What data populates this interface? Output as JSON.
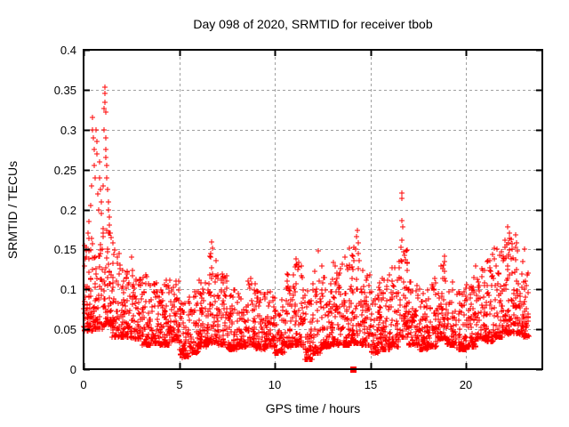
{
  "window": {
    "background": "#ffffff"
  },
  "chart_data": {
    "type": "scatter",
    "title": "Day 098 of 2020, SRMTID for receiver tbob",
    "xlabel": "GPS time / hours",
    "ylabel": "SRMTID / TECUs",
    "xlim": [
      0,
      24
    ],
    "ylim": [
      0,
      0.4
    ],
    "xticks": [
      0,
      5,
      10,
      15,
      20
    ],
    "xtick_labels": [
      "0",
      "5",
      "10",
      "15",
      "20"
    ],
    "yticks": [
      0,
      0.05,
      0.1,
      0.15,
      0.2,
      0.25,
      0.3,
      0.35,
      0.4
    ],
    "ytick_labels": [
      "0",
      "0.05",
      "0.1",
      "0.15",
      "0.2",
      "0.25",
      "0.3",
      "0.35",
      "0.4"
    ],
    "grid": true,
    "legend": false,
    "colors": {
      "marker": "#ff0000",
      "grid": "#a0a0a0",
      "frame": "#000000"
    },
    "series": [
      {
        "name": "SRMTID",
        "marker": "plus",
        "color": "#ff0000",
        "seed": 2020098,
        "band_bins": [
          [
            0.0,
            0.5,
            70,
            0.048,
            0.165
          ],
          [
            0.5,
            1.0,
            62,
            0.05,
            0.16
          ],
          [
            1.0,
            1.5,
            66,
            0.055,
            0.185
          ],
          [
            1.5,
            2.0,
            60,
            0.04,
            0.15
          ],
          [
            2.0,
            2.5,
            60,
            0.04,
            0.125
          ],
          [
            2.5,
            3.0,
            60,
            0.038,
            0.14
          ],
          [
            3.0,
            3.5,
            60,
            0.03,
            0.12
          ],
          [
            3.5,
            4.0,
            60,
            0.032,
            0.11
          ],
          [
            4.0,
            4.5,
            60,
            0.03,
            0.115
          ],
          [
            4.5,
            5.0,
            60,
            0.035,
            0.115
          ],
          [
            5.0,
            5.5,
            60,
            0.015,
            0.085
          ],
          [
            5.5,
            6.0,
            60,
            0.02,
            0.1
          ],
          [
            6.0,
            6.5,
            60,
            0.028,
            0.115
          ],
          [
            6.5,
            7.0,
            60,
            0.032,
            0.145
          ],
          [
            7.0,
            7.5,
            60,
            0.03,
            0.12
          ],
          [
            7.5,
            8.0,
            60,
            0.025,
            0.1
          ],
          [
            8.0,
            8.5,
            60,
            0.028,
            0.1
          ],
          [
            8.5,
            9.0,
            60,
            0.03,
            0.115
          ],
          [
            9.0,
            9.5,
            60,
            0.025,
            0.1
          ],
          [
            9.5,
            10.0,
            60,
            0.028,
            0.1
          ],
          [
            10.0,
            10.5,
            60,
            0.02,
            0.09
          ],
          [
            10.5,
            11.0,
            60,
            0.028,
            0.12
          ],
          [
            11.0,
            11.5,
            60,
            0.03,
            0.135
          ],
          [
            11.5,
            12.0,
            60,
            0.012,
            0.1
          ],
          [
            12.0,
            12.5,
            60,
            0.02,
            0.13
          ],
          [
            12.5,
            13.0,
            60,
            0.028,
            0.115
          ],
          [
            13.0,
            13.5,
            60,
            0.03,
            0.14
          ],
          [
            13.5,
            14.0,
            60,
            0.03,
            0.145
          ],
          [
            14.0,
            14.5,
            60,
            0.032,
            0.155
          ],
          [
            14.5,
            15.0,
            60,
            0.03,
            0.125
          ],
          [
            15.0,
            15.5,
            60,
            0.02,
            0.11
          ],
          [
            15.5,
            16.0,
            60,
            0.024,
            0.115
          ],
          [
            16.0,
            16.5,
            60,
            0.028,
            0.135
          ],
          [
            16.5,
            17.0,
            60,
            0.04,
            0.15
          ],
          [
            17.0,
            17.5,
            60,
            0.03,
            0.115
          ],
          [
            17.5,
            18.0,
            60,
            0.024,
            0.1
          ],
          [
            18.0,
            18.5,
            60,
            0.028,
            0.115
          ],
          [
            18.5,
            19.0,
            60,
            0.038,
            0.135
          ],
          [
            19.0,
            19.5,
            60,
            0.03,
            0.11
          ],
          [
            19.5,
            20.0,
            60,
            0.024,
            0.1
          ],
          [
            20.0,
            20.5,
            60,
            0.028,
            0.115
          ],
          [
            20.5,
            21.0,
            60,
            0.038,
            0.13
          ],
          [
            21.0,
            21.5,
            60,
            0.034,
            0.145
          ],
          [
            21.5,
            22.0,
            60,
            0.04,
            0.155
          ],
          [
            22.0,
            22.5,
            60,
            0.044,
            0.165
          ],
          [
            22.5,
            23.0,
            60,
            0.044,
            0.155
          ],
          [
            23.0,
            23.3,
            36,
            0.04,
            0.125
          ]
        ],
        "outlier_points": [
          [
            0.05,
            0.155
          ],
          [
            0.12,
            0.148
          ],
          [
            0.25,
            0.17
          ],
          [
            0.3,
            0.185
          ],
          [
            0.35,
            0.205
          ],
          [
            0.42,
            0.23
          ],
          [
            0.45,
            0.315
          ],
          [
            0.48,
            0.3
          ],
          [
            0.52,
            0.29
          ],
          [
            0.55,
            0.275
          ],
          [
            0.58,
            0.255
          ],
          [
            0.62,
            0.24
          ],
          [
            0.65,
            0.3
          ],
          [
            0.68,
            0.285
          ],
          [
            0.72,
            0.27
          ],
          [
            0.75,
            0.22
          ],
          [
            0.78,
            0.2
          ],
          [
            0.82,
            0.26
          ],
          [
            0.85,
            0.24
          ],
          [
            0.88,
            0.225
          ],
          [
            0.92,
            0.21
          ],
          [
            0.95,
            0.195
          ],
          [
            1.0,
            0.23
          ],
          [
            1.05,
            0.3
          ],
          [
            1.08,
            0.327
          ],
          [
            1.1,
            0.353
          ],
          [
            1.11,
            0.345
          ],
          [
            1.12,
            0.334
          ],
          [
            1.14,
            0.322
          ],
          [
            1.15,
            0.29
          ],
          [
            1.17,
            0.275
          ],
          [
            1.18,
            0.265
          ],
          [
            1.2,
            0.255
          ],
          [
            1.22,
            0.24
          ],
          [
            1.25,
            0.225
          ],
          [
            1.28,
            0.21
          ],
          [
            1.31,
            0.2
          ],
          [
            1.34,
            0.19
          ],
          [
            1.37,
            0.18
          ],
          [
            1.4,
            0.17
          ],
          [
            1.45,
            0.165
          ],
          [
            1.52,
            0.158
          ],
          [
            6.66,
            0.145
          ],
          [
            6.7,
            0.159
          ],
          [
            6.74,
            0.151
          ],
          [
            11.1,
            0.138
          ],
          [
            12.3,
            0.148
          ],
          [
            13.9,
            0.152
          ],
          [
            14.25,
            0.15
          ],
          [
            14.28,
            0.166
          ],
          [
            14.32,
            0.174
          ],
          [
            14.38,
            0.158
          ],
          [
            16.6,
            0.153
          ],
          [
            16.63,
            0.186
          ],
          [
            16.64,
            0.162
          ],
          [
            16.67,
            0.221
          ],
          [
            16.67,
            0.214
          ],
          [
            16.7,
            0.178
          ],
          [
            16.73,
            0.147
          ],
          [
            18.9,
            0.142
          ],
          [
            21.5,
            0.152
          ],
          [
            22.16,
            0.156
          ],
          [
            22.2,
            0.178
          ],
          [
            22.28,
            0.17
          ],
          [
            22.36,
            0.163
          ],
          [
            22.44,
            0.15
          ],
          [
            22.6,
            0.168
          ],
          [
            22.65,
            0.158
          ],
          [
            23.05,
            0.15
          ]
        ]
      }
    ],
    "special_points": [
      {
        "x": 14.09,
        "y": 0.0,
        "marker": "filled-square",
        "color": "#ff0000"
      }
    ]
  }
}
